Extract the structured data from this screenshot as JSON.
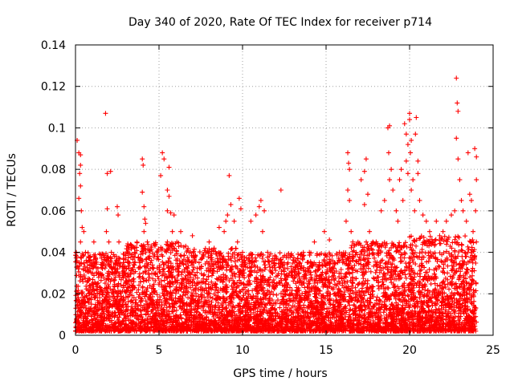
{
  "chart_data": {
    "type": "scatter",
    "title": "Day 340 of 2020, Rate Of TEC Index for receiver p714",
    "xlabel": "GPS time / hours",
    "ylabel": "ROTI / TECUs",
    "xlim": [
      0,
      25
    ],
    "ylim": [
      0,
      0.14
    ],
    "xticks": [
      0,
      5,
      10,
      15,
      20,
      25
    ],
    "xtick_labels": [
      "0",
      "5",
      "10",
      "15",
      "20",
      "25"
    ],
    "yticks": [
      0,
      0.02,
      0.04,
      0.06,
      0.08,
      0.1,
      0.12,
      0.14
    ],
    "ytick_labels": [
      "0",
      "0.02",
      "0.04",
      "0.06",
      "0.08",
      "0.1",
      "0.12",
      "0.14"
    ],
    "grid": true,
    "marker": "+",
    "color": "#ff0000",
    "series": [
      {
        "name": "ROTI",
        "points": [
          [
            0.1,
            0.094
          ],
          [
            0.2,
            0.088
          ],
          [
            0.3,
            0.087
          ],
          [
            0.3,
            0.082
          ],
          [
            0.25,
            0.078
          ],
          [
            0.3,
            0.072
          ],
          [
            0.2,
            0.066
          ],
          [
            0.35,
            0.06
          ],
          [
            0.4,
            0.052
          ],
          [
            0.3,
            0.045
          ],
          [
            0.5,
            0.05
          ],
          [
            0.6,
            0.04
          ],
          [
            1.0,
            0.035
          ],
          [
            1.2,
            0.025
          ],
          [
            1.1,
            0.045
          ],
          [
            1.8,
            0.107
          ],
          [
            1.9,
            0.078
          ],
          [
            2.1,
            0.079
          ],
          [
            1.9,
            0.061
          ],
          [
            1.85,
            0.05
          ],
          [
            2.0,
            0.045
          ],
          [
            2.1,
            0.036
          ],
          [
            2.2,
            0.03
          ],
          [
            2.5,
            0.062
          ],
          [
            2.55,
            0.058
          ],
          [
            2.6,
            0.045
          ],
          [
            2.45,
            0.038
          ],
          [
            3.2,
            0.035
          ],
          [
            3.5,
            0.03
          ],
          [
            3.8,
            0.028
          ],
          [
            4.0,
            0.085
          ],
          [
            4.05,
            0.082
          ],
          [
            4.0,
            0.069
          ],
          [
            4.1,
            0.062
          ],
          [
            4.15,
            0.056
          ],
          [
            4.2,
            0.054
          ],
          [
            4.1,
            0.05
          ],
          [
            4.3,
            0.045
          ],
          [
            4.5,
            0.035
          ],
          [
            4.8,
            0.03
          ],
          [
            5.2,
            0.088
          ],
          [
            5.3,
            0.085
          ],
          [
            5.1,
            0.077
          ],
          [
            5.6,
            0.081
          ],
          [
            5.5,
            0.07
          ],
          [
            5.6,
            0.067
          ],
          [
            5.5,
            0.06
          ],
          [
            5.7,
            0.059
          ],
          [
            5.9,
            0.058
          ],
          [
            5.8,
            0.05
          ],
          [
            5.5,
            0.045
          ],
          [
            6.3,
            0.05
          ],
          [
            6.6,
            0.043
          ],
          [
            6.8,
            0.04
          ],
          [
            7.0,
            0.048
          ],
          [
            7.4,
            0.035
          ],
          [
            7.8,
            0.04
          ],
          [
            8.0,
            0.045
          ],
          [
            8.3,
            0.042
          ],
          [
            8.6,
            0.052
          ],
          [
            8.9,
            0.05
          ],
          [
            8.2,
            0.03
          ],
          [
            9.2,
            0.077
          ],
          [
            9.3,
            0.063
          ],
          [
            9.1,
            0.058
          ],
          [
            9.0,
            0.055
          ],
          [
            9.8,
            0.066
          ],
          [
            9.9,
            0.061
          ],
          [
            9.5,
            0.055
          ],
          [
            9.7,
            0.045
          ],
          [
            10.0,
            0.04
          ],
          [
            10.5,
            0.055
          ],
          [
            10.8,
            0.058
          ],
          [
            11.0,
            0.062
          ],
          [
            11.1,
            0.065
          ],
          [
            11.3,
            0.06
          ],
          [
            11.2,
            0.05
          ],
          [
            11.5,
            0.04
          ],
          [
            11.8,
            0.03
          ],
          [
            12.0,
            0.038
          ],
          [
            12.3,
            0.07
          ],
          [
            12.5,
            0.035
          ],
          [
            12.8,
            0.03
          ],
          [
            13.0,
            0.028
          ],
          [
            13.5,
            0.032
          ],
          [
            14.0,
            0.04
          ],
          [
            14.3,
            0.045
          ],
          [
            14.6,
            0.035
          ],
          [
            14.9,
            0.05
          ],
          [
            15.2,
            0.046
          ],
          [
            15.5,
            0.03
          ],
          [
            15.8,
            0.04
          ],
          [
            16.0,
            0.035
          ],
          [
            16.3,
            0.088
          ],
          [
            16.35,
            0.083
          ],
          [
            16.4,
            0.08
          ],
          [
            16.3,
            0.07
          ],
          [
            16.4,
            0.065
          ],
          [
            16.2,
            0.055
          ],
          [
            16.5,
            0.05
          ],
          [
            16.6,
            0.045
          ],
          [
            16.8,
            0.04
          ],
          [
            17.1,
            0.075
          ],
          [
            17.3,
            0.079
          ],
          [
            17.4,
            0.085
          ],
          [
            17.5,
            0.068
          ],
          [
            17.3,
            0.063
          ],
          [
            17.6,
            0.05
          ],
          [
            17.8,
            0.045
          ],
          [
            18.0,
            0.045
          ],
          [
            18.3,
            0.06
          ],
          [
            18.5,
            0.065
          ],
          [
            18.7,
            0.1
          ],
          [
            18.8,
            0.101
          ],
          [
            18.75,
            0.088
          ],
          [
            18.9,
            0.08
          ],
          [
            18.8,
            0.075
          ],
          [
            19.0,
            0.07
          ],
          [
            19.2,
            0.06
          ],
          [
            19.4,
            0.075
          ],
          [
            19.5,
            0.08
          ],
          [
            19.6,
            0.065
          ],
          [
            19.3,
            0.055
          ],
          [
            19.7,
            0.102
          ],
          [
            19.8,
            0.097
          ],
          [
            19.9,
            0.092
          ],
          [
            19.8,
            0.084
          ],
          [
            19.9,
            0.078
          ],
          [
            20.0,
            0.107
          ],
          [
            20.0,
            0.104
          ],
          [
            20.1,
            0.094
          ],
          [
            20.05,
            0.088
          ],
          [
            20.2,
            0.075
          ],
          [
            20.1,
            0.07
          ],
          [
            20.3,
            0.06
          ],
          [
            20.4,
            0.105
          ],
          [
            20.35,
            0.097
          ],
          [
            20.5,
            0.084
          ],
          [
            20.5,
            0.078
          ],
          [
            20.6,
            0.065
          ],
          [
            20.8,
            0.058
          ],
          [
            21.0,
            0.055
          ],
          [
            21.2,
            0.05
          ],
          [
            21.4,
            0.045
          ],
          [
            21.6,
            0.055
          ],
          [
            21.8,
            0.048
          ],
          [
            22.0,
            0.05
          ],
          [
            22.2,
            0.055
          ],
          [
            22.5,
            0.058
          ],
          [
            22.7,
            0.06
          ],
          [
            22.8,
            0.124
          ],
          [
            22.85,
            0.112
          ],
          [
            22.9,
            0.108
          ],
          [
            22.8,
            0.095
          ],
          [
            22.9,
            0.085
          ],
          [
            23.0,
            0.075
          ],
          [
            23.1,
            0.065
          ],
          [
            23.2,
            0.06
          ],
          [
            23.4,
            0.055
          ],
          [
            23.5,
            0.088
          ],
          [
            23.6,
            0.068
          ],
          [
            23.7,
            0.065
          ],
          [
            23.8,
            0.05
          ],
          [
            23.9,
            0.09
          ],
          [
            24.0,
            0.086
          ],
          [
            24.0,
            0.075
          ],
          [
            23.95,
            0.06
          ],
          [
            24.0,
            0.045
          ]
        ],
        "clusters": [
          {
            "x_range": [
              0.0,
              3.0
            ],
            "y_range": [
              0.002,
              0.04
            ]
          },
          {
            "x_range": [
              3.0,
              6.5
            ],
            "y_range": [
              0.002,
              0.045
            ]
          },
          {
            "x_range": [
              6.5,
              10.0
            ],
            "y_range": [
              0.002,
              0.042
            ]
          },
          {
            "x_range": [
              10.0,
              13.5
            ],
            "y_range": [
              0.002,
              0.04
            ]
          },
          {
            "x_range": [
              13.5,
              16.5
            ],
            "y_range": [
              0.002,
              0.04
            ]
          },
          {
            "x_range": [
              16.5,
              20.0
            ],
            "y_range": [
              0.002,
              0.045
            ]
          },
          {
            "x_range": [
              20.0,
              24.0
            ],
            "y_range": [
              0.002,
              0.048
            ]
          }
        ]
      }
    ]
  }
}
